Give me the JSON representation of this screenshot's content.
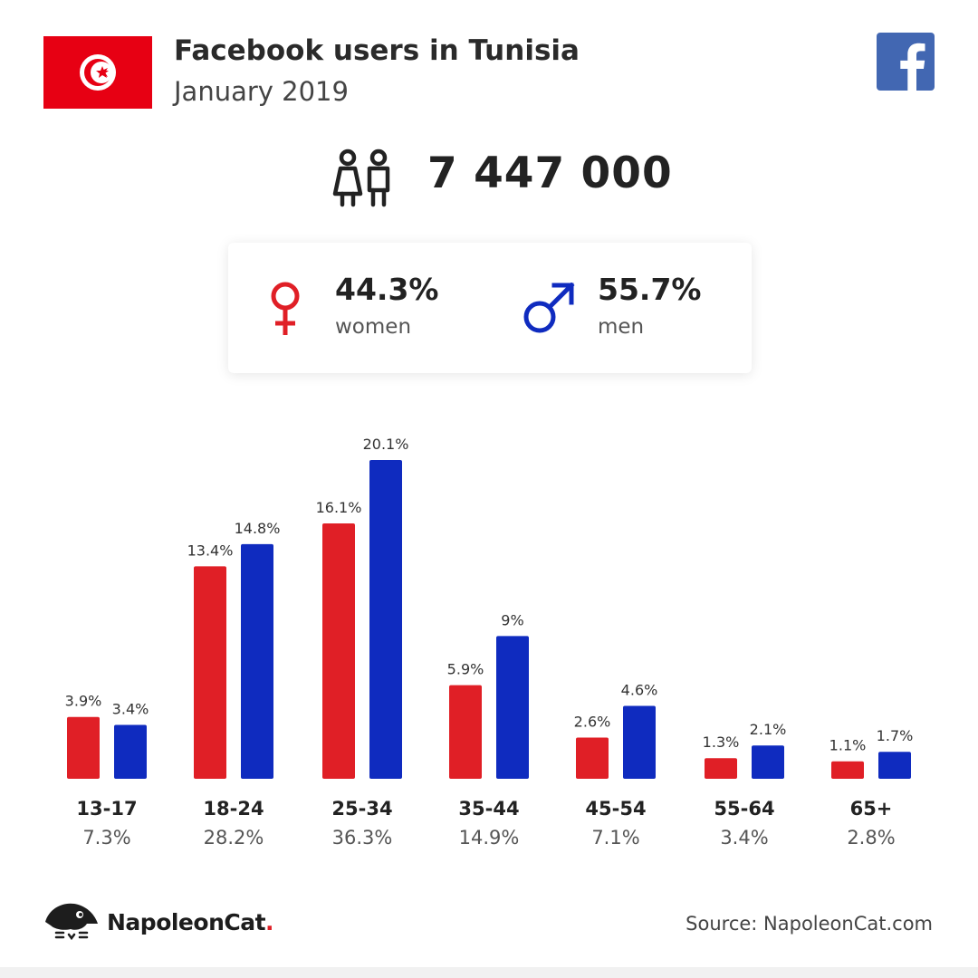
{
  "header": {
    "title": "Facebook users in Tunisia",
    "subtitle": "January 2019"
  },
  "total_users": "7 447 000",
  "gender": {
    "women": {
      "pct": "44.3%",
      "label": "women"
    },
    "men": {
      "pct": "55.7%",
      "label": "men"
    }
  },
  "colors": {
    "women": "#e01f26",
    "men": "#0f2bbf",
    "flag_red": "#e70013",
    "facebook": "#4267b2"
  },
  "icons": {
    "flag": "tunisia-flag",
    "facebook": "facebook-logo",
    "users": "users-icon",
    "female": "female-symbol",
    "male": "male-symbol",
    "brand": "napoleoncat-logo"
  },
  "chart_data": {
    "type": "bar",
    "categories": [
      "13-17",
      "18-24",
      "25-34",
      "35-44",
      "45-54",
      "55-64",
      "65+"
    ],
    "series": [
      {
        "values": [
          3.9,
          13.4,
          16.1,
          5.9,
          2.6,
          1.3,
          1.1
        ],
        "labels": [
          "3.9%",
          "13.4%",
          "16.1%",
          "5.9%",
          "2.6%",
          "1.3%",
          "1.1%"
        ]
      },
      {
        "values": [
          3.4,
          14.8,
          20.1,
          9,
          4.6,
          2.1,
          1.7
        ],
        "labels": [
          "3.4%",
          "14.8%",
          "20.1%",
          "9%",
          "4.6%",
          "2.1%",
          "1.7%"
        ]
      }
    ],
    "totals": [
      "7.3%",
      "28.2%",
      "36.3%",
      "14.9%",
      "7.1%",
      "3.4%",
      "2.8%"
    ],
    "title": "",
    "xlabel": "",
    "ylabel": "",
    "ylim": [
      0,
      20.1
    ],
    "grid": false,
    "legend": "none"
  },
  "footer": {
    "brand": "NapoleonCat",
    "brand_dot": ".",
    "source": "Source: NapoleonCat.com"
  }
}
